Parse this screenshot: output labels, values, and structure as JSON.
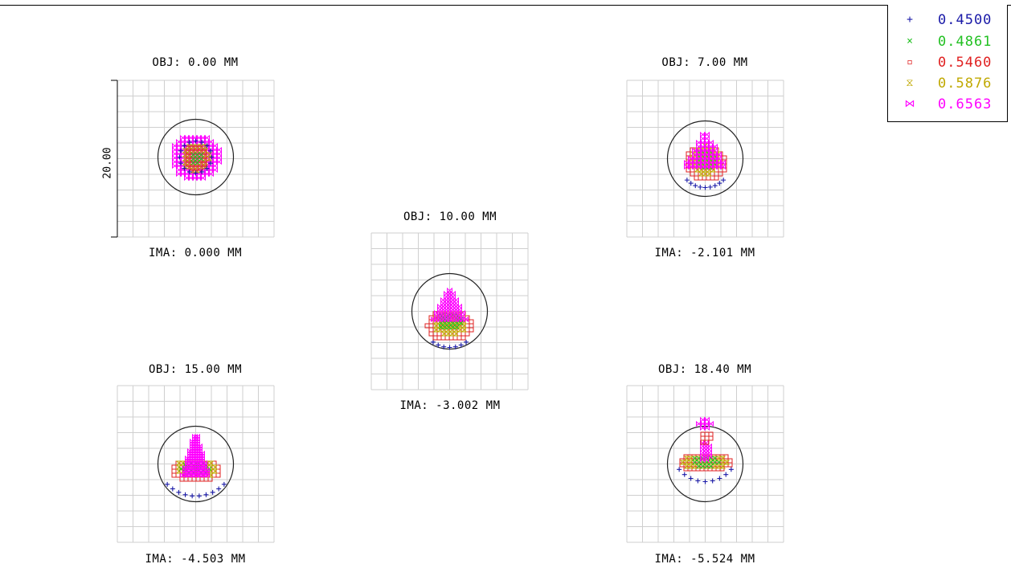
{
  "chart_data": {
    "type": "scatter",
    "scale_bar_label": "20.00",
    "legend": [
      {
        "label": "0.4500",
        "marker": "+",
        "color": "#1a1aa8"
      },
      {
        "label": "0.4861",
        "marker": "×",
        "color": "#22c022"
      },
      {
        "label": "0.5460",
        "marker": "▫",
        "color": "#e02020"
      },
      {
        "label": "0.5876",
        "marker": "⧖",
        "color": "#c0a800"
      },
      {
        "label": "0.6563",
        "marker": "⋈",
        "color": "#ff00ff"
      }
    ],
    "fields": [
      {
        "obj": "OBJ: 0.00 MM",
        "ima": "IMA: 0.000 MM"
      },
      {
        "obj": "OBJ: 7.00 MM",
        "ima": "IMA: -2.101 MM"
      },
      {
        "obj": "OBJ: 10.00 MM",
        "ima": "IMA: -3.002 MM"
      },
      {
        "obj": "OBJ: 15.00 MM",
        "ima": "IMA: -4.503 MM"
      },
      {
        "obj": "OBJ: 18.40 MM",
        "ima": "IMA: -5.524 MM"
      }
    ]
  }
}
